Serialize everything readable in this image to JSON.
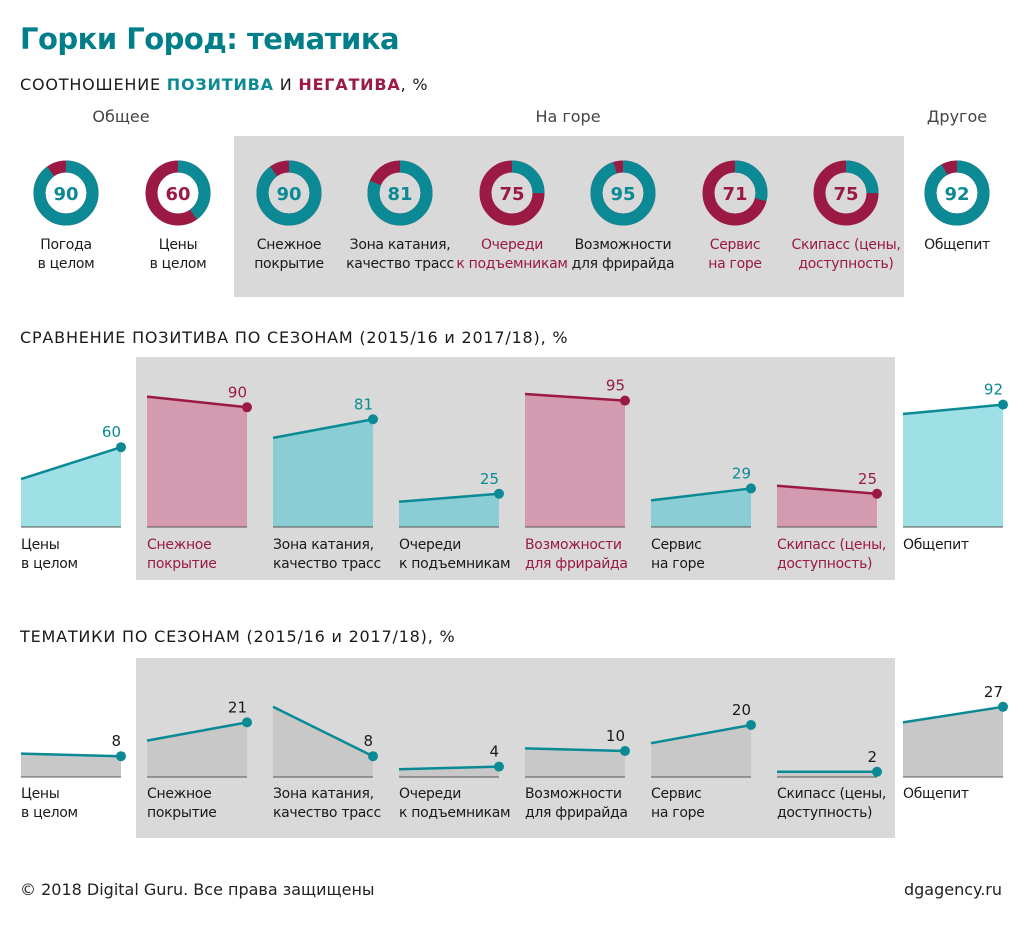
{
  "title": "Горки Город: тематика",
  "section1": {
    "prefix": "СООТНОШЕНИЕ ",
    "positive": "ПОЗИТИВА",
    "and": " И ",
    "negative": "НЕГАТИВА",
    "suffix": ", %"
  },
  "groups": {
    "general": "Общее",
    "mountain": "На горе",
    "other": "Другое"
  },
  "colors": {
    "positive": "#0b8a95",
    "negative": "#9a1a43",
    "light_teal": "#9fdfe6",
    "mid_teal": "#8acdd4",
    "pink": "#d49ab0",
    "gray_area": "#c8c8c8",
    "panel": "#d9d9d9"
  },
  "section2_title": "СРАВНЕНИЕ ПОЗИТИВА ПО СЕЗОНАМ (2015/16 и 2017/18), %",
  "section3_title": "ТЕМАТИКИ ПО СЕЗОНАМ (2015/16 и 2017/18), %",
  "chart_data": [
    {
      "type": "pie",
      "title": "СООТНОШЕНИЕ ПОЗИТИВА И НЕГАТИВА, %",
      "items": [
        {
          "label1": "Погода",
          "label2": "в целом",
          "value": 90,
          "tone": "positive"
        },
        {
          "label1": "Цены",
          "label2": "в целом",
          "value": 60,
          "tone": "negative"
        },
        {
          "label1": "Снежное",
          "label2": "покрытие",
          "value": 90,
          "tone": "positive"
        },
        {
          "label1": "Зона катания,",
          "label2": "качество трасс",
          "value": 81,
          "tone": "positive"
        },
        {
          "label1": "Очереди",
          "label2": "к подъемникам",
          "value": 75,
          "tone": "negative"
        },
        {
          "label1": "Возможности",
          "label2": "для фрирайда",
          "value": 95,
          "tone": "positive"
        },
        {
          "label1": "Сервис",
          "label2": "на горе",
          "value": 71,
          "tone": "negative"
        },
        {
          "label1": "Скипасс (цены,",
          "label2": "доступность)",
          "value": 75,
          "tone": "negative"
        },
        {
          "label1": "Общепит",
          "label2": "",
          "value": 92,
          "tone": "positive"
        }
      ]
    },
    {
      "type": "area",
      "title": "СРАВНЕНИЕ ПОЗИТИВА ПО СЕЗОНАМ (2015/16 и 2017/18), %",
      "x": [
        "2015/16",
        "2017/18"
      ],
      "items": [
        {
          "label1": "Цены",
          "label2": "в целом",
          "start": 36,
          "end": 60,
          "trend": "up"
        },
        {
          "label1": "Снежное",
          "label2": "покрытие",
          "start": 98,
          "end": 90,
          "trend": "down"
        },
        {
          "label1": "Зона катания,",
          "label2": "качество трасс",
          "start": 67,
          "end": 81,
          "trend": "up"
        },
        {
          "label1": "Очереди",
          "label2": "к подъемникам",
          "start": 19,
          "end": 25,
          "trend": "up"
        },
        {
          "label1": "Возможности",
          "label2": "для фрирайда",
          "start": 100,
          "end": 95,
          "trend": "down"
        },
        {
          "label1": "Сервис",
          "label2": "на горе",
          "start": 20,
          "end": 29,
          "trend": "up"
        },
        {
          "label1": "Скипасс (цены,",
          "label2": "доступность)",
          "start": 31,
          "end": 25,
          "trend": "down"
        },
        {
          "label1": "Общепит",
          "label2": "",
          "start": 85,
          "end": 92,
          "trend": "up"
        }
      ]
    },
    {
      "type": "area",
      "title": "ТЕМАТИКИ ПО СЕЗОНАМ (2015/16 и 2017/18), %",
      "x": [
        "2015/16",
        "2017/18"
      ],
      "items": [
        {
          "label1": "Цены",
          "label2": "в целом",
          "start": 9,
          "end": 8
        },
        {
          "label1": "Снежное",
          "label2": "покрытие",
          "start": 14,
          "end": 21
        },
        {
          "label1": "Зона катания,",
          "label2": "качество трасс",
          "start": 27,
          "end": 8
        },
        {
          "label1": "Очереди",
          "label2": "к подъемникам",
          "start": 3,
          "end": 4
        },
        {
          "label1": "Возможности",
          "label2": "для фрирайда",
          "start": 11,
          "end": 10
        },
        {
          "label1": "Сервис",
          "label2": "на горе",
          "start": 13,
          "end": 20
        },
        {
          "label1": "Скипасс (цены,",
          "label2": "доступность)",
          "start": 2,
          "end": 2
        },
        {
          "label1": "Общепит",
          "label2": "",
          "start": 21,
          "end": 27
        }
      ]
    }
  ],
  "footer": {
    "copyright": "© 2018 Digital Guru. Все права защищены",
    "site": "dgagency.ru"
  }
}
